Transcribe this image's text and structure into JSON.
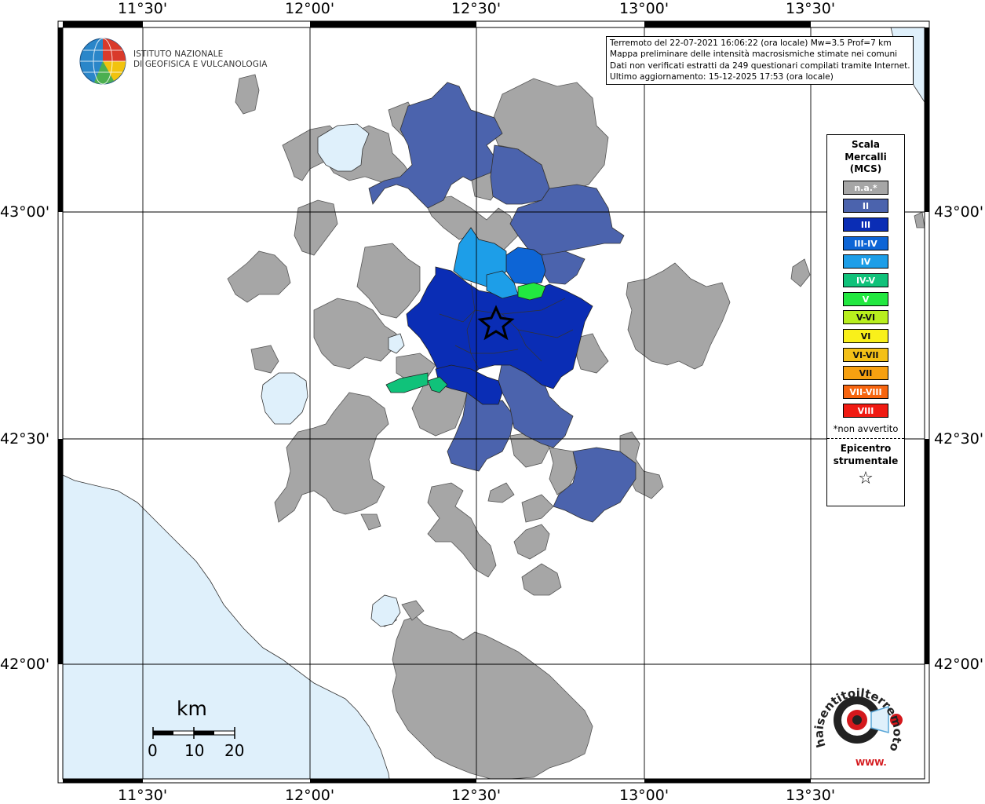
{
  "axes": {
    "top_ticks": [
      "11°30'",
      "12°00'",
      "12°30'",
      "13°00'",
      "13°30'"
    ],
    "bottom_ticks": [
      "11°30'",
      "12°00'",
      "12°30'",
      "13°00'",
      "13°30'"
    ],
    "left_ticks": [
      "43°00'",
      "42°30'",
      "42°00'"
    ],
    "right_ticks": [
      "43°00'",
      "42°30'",
      "42°00'"
    ]
  },
  "institute": {
    "line1": "ISTITUTO NAZIONALE",
    "line2": "DI GEOFISICA E VULCANOLOGIA"
  },
  "info": {
    "line1": "Terremoto del 22-07-2021 16:06:22 (ora locale) Mw=3.5 Prof=7 km",
    "line2": "Mappa preliminare delle intensità macrosismiche stimate nei comuni",
    "line3": "Dati non verificati estratti da 249 questionari compilati tramite Internet.",
    "line4": "Ultimo aggiornamento: 15-12-2025 17:53 (ora locale)"
  },
  "legend": {
    "title1": "Scala",
    "title2": "Mercalli",
    "title3": "(MCS)",
    "items": [
      {
        "label": "n.a.*",
        "color": "#a6a6a6"
      },
      {
        "label": "II",
        "color": "#4b63ad"
      },
      {
        "label": "III",
        "color": "#0a2db5"
      },
      {
        "label": "III-IV",
        "color": "#0d65d6"
      },
      {
        "label": "IV",
        "color": "#1d9ee8"
      },
      {
        "label": "IV-V",
        "color": "#10c27a"
      },
      {
        "label": "V",
        "color": "#22e840"
      },
      {
        "label": "V-VI",
        "color": "#b8ef1e"
      },
      {
        "label": "VI",
        "color": "#f9f01a"
      },
      {
        "label": "VI-VII",
        "color": "#f4c017"
      },
      {
        "label": "VII",
        "color": "#f7a010"
      },
      {
        "label": "VII-VIII",
        "color": "#f7650f"
      },
      {
        "label": "VIII",
        "color": "#f01a12"
      }
    ],
    "note": "*non avvertito",
    "epi1": "Epicentro",
    "epi2": "strumentale",
    "star": "☆"
  },
  "scale_bar": {
    "unit": "km",
    "labels": [
      "0",
      "10",
      "20"
    ]
  },
  "brand": {
    "text": "haisentitoilterremoto.it",
    "url_text": "WWW.",
    "colors": {
      "accent": "#d4181c",
      "sea": "#dff0fb",
      "land": "#a6a6a6"
    }
  }
}
